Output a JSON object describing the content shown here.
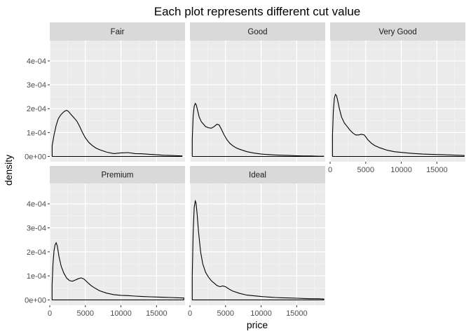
{
  "chart_data": {
    "type": "line",
    "title": "Each plot represents different cut value",
    "xlabel": "price",
    "ylabel": "density",
    "xlim": [
      0,
      19000
    ],
    "ylim": [
      -2.2e-05,
      0.000485
    ],
    "x_ticks": [
      0,
      5000,
      10000,
      15000
    ],
    "x_tick_labels": [
      "0",
      "5000",
      "10000",
      "15000"
    ],
    "y_ticks": [
      0,
      0.0001,
      0.0002,
      0.0003,
      0.0004
    ],
    "y_tick_labels": [
      "0e+00",
      "1e-04",
      "2e-04",
      "3e-04",
      "4e-04"
    ],
    "grid": true,
    "colors": {
      "panel_bg": "#ebebeb",
      "strip_bg": "#d9d9d9",
      "grid_major": "#ffffff",
      "grid_minor": "#f5f5f5",
      "line": "#000000"
    },
    "panels": [
      {
        "name": "Fair",
        "x": [
          337,
          600,
          900,
          1200,
          1500,
          1800,
          2100,
          2400,
          2700,
          3000,
          3400,
          3800,
          4200,
          4600,
          5000,
          5500,
          6000,
          6500,
          7000,
          8000,
          9000,
          10000,
          11000,
          12000,
          13000,
          14000,
          15000,
          16000,
          17000,
          18000,
          18574
        ],
        "y": [
          4.5e-05,
          9e-05,
          0.00013,
          0.000158,
          0.000172,
          0.000182,
          0.00019,
          0.000193,
          0.000186,
          0.000175,
          0.000162,
          0.000148,
          0.000125,
          0.0001,
          7.8e-05,
          5.8e-05,
          4.5e-05,
          3.5e-05,
          2.8e-05,
          1.8e-05,
          1.2e-05,
          1.5e-05,
          1.6e-05,
          1.2e-05,
          1.1e-05,
          9e-06,
          7e-06,
          5e-06,
          4e-06,
          3e-06,
          2e-06
        ]
      },
      {
        "name": "Good",
        "x": [
          327,
          450,
          600,
          750,
          900,
          1100,
          1300,
          1600,
          1900,
          2200,
          2600,
          3000,
          3400,
          3800,
          4100,
          4400,
          4800,
          5200,
          5600,
          6000,
          6500,
          7000,
          8000,
          9000,
          10000,
          11000,
          12000,
          13000,
          14000,
          15000,
          16000,
          17000,
          18000,
          18788
        ],
        "y": [
          7e-05,
          0.00017,
          0.00021,
          0.000222,
          0.000215,
          0.00019,
          0.000165,
          0.000145,
          0.000135,
          0.000125,
          0.00012,
          0.000118,
          0.000125,
          0.000135,
          0.000132,
          0.000115,
          9e-05,
          7e-05,
          5.5e-05,
          4.5e-05,
          3.6e-05,
          3e-05,
          2e-05,
          1.4e-05,
          1e-05,
          8e-06,
          6e-06,
          5e-06,
          4e-06,
          3e-06,
          2e-06,
          2e-06,
          1e-06,
          1e-06
        ]
      },
      {
        "name": "Very Good",
        "x": [
          336,
          450,
          600,
          750,
          900,
          1050,
          1300,
          1600,
          2000,
          2400,
          2800,
          3200,
          3600,
          4000,
          4400,
          4800,
          5300,
          5800,
          6300,
          7000,
          8000,
          9000,
          10000,
          11000,
          12000,
          13000,
          14000,
          15000,
          16000,
          17000,
          18000,
          18818
        ],
        "y": [
          9e-05,
          0.00019,
          0.000245,
          0.00026,
          0.000255,
          0.000235,
          0.0002,
          0.000165,
          0.00014,
          0.000125,
          0.00011,
          9.8e-05,
          9e-05,
          9e-05,
          9.3e-05,
          9e-05,
          7e-05,
          5.5e-05,
          4.5e-05,
          3.6e-05,
          2.6e-05,
          2e-05,
          1.7e-05,
          1.4e-05,
          1.2e-05,
          1e-05,
          9e-06,
          8e-06,
          7e-06,
          6e-06,
          5e-06,
          4e-06
        ]
      },
      {
        "name": "Premium",
        "x": [
          326,
          450,
          600,
          750,
          900,
          1050,
          1300,
          1600,
          2000,
          2400,
          2800,
          3200,
          3600,
          4000,
          4400,
          4800,
          5300,
          5800,
          6300,
          7000,
          8000,
          9000,
          10000,
          11000,
          12000,
          13000,
          14000,
          15000,
          16000,
          17000,
          18000,
          18823
        ],
        "y": [
          6e-05,
          0.00015,
          0.000205,
          0.00023,
          0.000238,
          0.000225,
          0.00018,
          0.00014,
          0.00011,
          9e-05,
          8e-05,
          7.8e-05,
          8.3e-05,
          8.8e-05,
          9.2e-05,
          8.7e-05,
          7.3e-05,
          6e-05,
          5e-05,
          3.8e-05,
          2.8e-05,
          2.2e-05,
          1.9e-05,
          1.8e-05,
          1.6e-05,
          1.4e-05,
          1.3e-05,
          1.2e-05,
          1.1e-05,
          1e-05,
          9e-06,
          8e-06
        ]
      },
      {
        "name": "Ideal",
        "x": [
          326,
          450,
          600,
          750,
          850,
          1000,
          1200,
          1500,
          1800,
          2200,
          2600,
          3000,
          3400,
          3800,
          4200,
          4600,
          5000,
          5500,
          6000,
          7000,
          8000,
          9000,
          10000,
          11000,
          12000,
          13000,
          14000,
          15000,
          16000,
          17000,
          18000,
          18806
        ],
        "y": [
          0.0001,
          0.00028,
          0.000385,
          0.000412,
          0.000405,
          0.00036,
          0.000285,
          0.0002,
          0.00015,
          0.000115,
          9.5e-05,
          8e-05,
          7e-05,
          6e-05,
          5.5e-05,
          5.8e-05,
          5.5e-05,
          4.5e-05,
          3.7e-05,
          2.7e-05,
          2e-05,
          1.7e-05,
          1.4e-05,
          1.2e-05,
          1e-05,
          9e-06,
          8e-06,
          7e-06,
          6e-06,
          5e-06,
          5e-06,
          4e-06
        ]
      }
    ]
  }
}
